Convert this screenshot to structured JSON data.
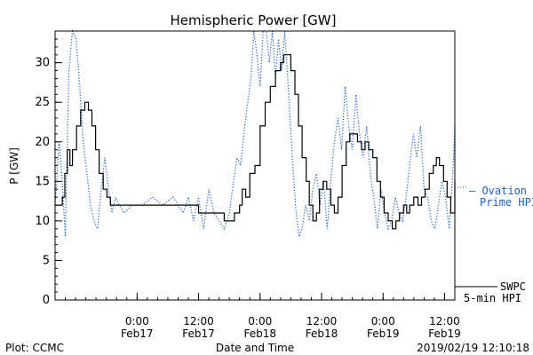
{
  "chart_data": {
    "type": "line",
    "title": "Hemispheric Power [GW]",
    "xlabel": "Date and Time",
    "ylabel": "P [GW]",
    "ylim": [
      0,
      34
    ],
    "xlim": [
      -16,
      62
    ],
    "yticks": [
      0,
      5,
      10,
      15,
      20,
      25,
      30
    ],
    "xticks": [
      {
        "value": 0,
        "time": "0:00",
        "date": "Feb17"
      },
      {
        "value": 12,
        "time": "12:00",
        "date": "Feb17"
      },
      {
        "value": 24,
        "time": "0:00",
        "date": "Feb18"
      },
      {
        "value": 36,
        "time": "12:00",
        "date": "Feb18"
      },
      {
        "value": 48,
        "time": "0:00",
        "date": "Feb19"
      },
      {
        "value": 60,
        "time": "12:00",
        "date": "Feb19"
      }
    ],
    "series": [
      {
        "name": "SWPC 5-min HPI",
        "style": "solid",
        "color": "#000000",
        "points": [
          [
            -16,
            12
          ],
          [
            -15.3,
            12
          ],
          [
            -14.6,
            13
          ],
          [
            -14.1,
            16
          ],
          [
            -13.6,
            19
          ],
          [
            -13.1,
            17
          ],
          [
            -12.6,
            19
          ],
          [
            -11.8,
            22
          ],
          [
            -11,
            24
          ],
          [
            -10.2,
            25
          ],
          [
            -9.5,
            24
          ],
          [
            -8.8,
            22
          ],
          [
            -8.1,
            19
          ],
          [
            -7.4,
            16
          ],
          [
            -6.6,
            14
          ],
          [
            -5.9,
            13
          ],
          [
            -5.2,
            12
          ],
          [
            -3,
            12
          ],
          [
            0,
            12
          ],
          [
            4,
            12
          ],
          [
            8,
            12
          ],
          [
            11,
            12
          ],
          [
            12,
            11
          ],
          [
            14,
            11
          ],
          [
            16,
            11
          ],
          [
            17,
            10
          ],
          [
            18,
            10
          ],
          [
            19,
            11
          ],
          [
            20,
            12
          ],
          [
            20.5,
            14
          ],
          [
            21.2,
            13
          ],
          [
            22,
            16
          ],
          [
            23,
            17
          ],
          [
            24,
            22
          ],
          [
            25,
            25
          ],
          [
            26,
            27
          ],
          [
            27,
            29
          ],
          [
            28,
            30
          ],
          [
            28.6,
            31
          ],
          [
            29.3,
            31
          ],
          [
            30,
            29
          ],
          [
            30.8,
            26
          ],
          [
            31.5,
            22
          ],
          [
            32.2,
            18
          ],
          [
            33,
            15
          ],
          [
            33.6,
            12
          ],
          [
            34.3,
            10
          ],
          [
            35,
            11
          ],
          [
            35.6,
            14
          ],
          [
            36.3,
            15
          ],
          [
            37,
            14
          ],
          [
            37.8,
            12
          ],
          [
            38.5,
            11
          ],
          [
            39.2,
            13
          ],
          [
            40,
            17
          ],
          [
            40.8,
            20
          ],
          [
            41.5,
            21
          ],
          [
            42.2,
            21
          ],
          [
            43,
            20
          ],
          [
            43.8,
            19
          ],
          [
            44.5,
            20
          ],
          [
            45.2,
            19
          ],
          [
            46,
            18
          ],
          [
            46.8,
            15
          ],
          [
            47.5,
            13
          ],
          [
            48.2,
            11
          ],
          [
            49,
            10
          ],
          [
            49.8,
            9
          ],
          [
            50.5,
            10
          ],
          [
            51.2,
            11
          ],
          [
            52,
            12
          ],
          [
            52.6,
            11
          ],
          [
            53.2,
            12
          ],
          [
            54,
            13
          ],
          [
            54.8,
            12
          ],
          [
            55.5,
            13
          ],
          [
            56.2,
            14
          ],
          [
            57,
            16
          ],
          [
            57.8,
            17
          ],
          [
            58.4,
            18
          ],
          [
            59,
            17
          ],
          [
            59.8,
            15
          ],
          [
            60.5,
            13
          ],
          [
            61.2,
            11
          ],
          [
            62,
            11
          ],
          [
            62.6,
            12
          ],
          [
            63.2,
            14
          ],
          [
            63.8,
            15
          ]
        ]
      },
      {
        "name": "Ovation Prime HPI",
        "style": "dotted",
        "color": "#1f5fbf",
        "points": [
          [
            -16,
            12
          ],
          [
            -15.2,
            20
          ],
          [
            -14.6,
            15
          ],
          [
            -14,
            8
          ],
          [
            -13.3,
            29
          ],
          [
            -12.6,
            35
          ],
          [
            -11.9,
            33
          ],
          [
            -11.2,
            27
          ],
          [
            -10.5,
            20
          ],
          [
            -9.8,
            16
          ],
          [
            -9.1,
            12
          ],
          [
            -8.4,
            10
          ],
          [
            -7.7,
            9
          ],
          [
            -7,
            14
          ],
          [
            -6.3,
            18
          ],
          [
            -5.6,
            14
          ],
          [
            -4.9,
            11
          ],
          [
            -4.2,
            13
          ],
          [
            -3.5,
            12
          ],
          [
            -2.5,
            11
          ],
          [
            -1,
            12
          ],
          [
            1,
            12
          ],
          [
            3,
            13
          ],
          [
            5,
            12
          ],
          [
            7,
            13
          ],
          [
            9,
            11
          ],
          [
            10,
            13
          ],
          [
            11,
            10
          ],
          [
            12,
            13
          ],
          [
            13,
            9
          ],
          [
            14,
            14
          ],
          [
            15,
            11
          ],
          [
            16,
            10
          ],
          [
            17,
            9
          ],
          [
            18,
            11
          ],
          [
            18.8,
            15
          ],
          [
            19.5,
            18
          ],
          [
            20.2,
            17
          ],
          [
            21,
            22
          ],
          [
            21.6,
            25
          ],
          [
            22.2,
            28
          ],
          [
            22.8,
            35
          ],
          [
            23.4,
            31
          ],
          [
            24,
            27
          ],
          [
            24.6,
            35
          ],
          [
            25.2,
            36
          ],
          [
            25.8,
            30
          ],
          [
            26.4,
            35
          ],
          [
            27,
            28
          ],
          [
            27.6,
            33
          ],
          [
            28.2,
            29
          ],
          [
            28.8,
            35
          ],
          [
            29.5,
            27
          ],
          [
            30.2,
            19
          ],
          [
            30.9,
            12
          ],
          [
            31.6,
            8
          ],
          [
            32.2,
            9
          ],
          [
            32.9,
            12
          ],
          [
            33.6,
            10
          ],
          [
            34.3,
            14
          ],
          [
            35,
            16
          ],
          [
            35.7,
            12
          ],
          [
            36.4,
            15
          ],
          [
            37.1,
            9
          ],
          [
            37.8,
            15
          ],
          [
            38.5,
            20
          ],
          [
            39.2,
            23
          ],
          [
            39.9,
            19
          ],
          [
            40.6,
            27
          ],
          [
            41.3,
            22
          ],
          [
            42,
            19
          ],
          [
            42.7,
            26
          ],
          [
            43.4,
            21
          ],
          [
            44.1,
            18
          ],
          [
            44.8,
            22
          ],
          [
            45.5,
            16
          ],
          [
            46.2,
            13
          ],
          [
            46.9,
            9
          ],
          [
            47.6,
            14
          ],
          [
            48.3,
            11
          ],
          [
            49,
            9
          ],
          [
            49.7,
            10
          ],
          [
            50.4,
            13
          ],
          [
            51.1,
            11
          ],
          [
            51.8,
            10
          ],
          [
            52.5,
            13
          ],
          [
            53.2,
            17
          ],
          [
            53.9,
            21
          ],
          [
            54.6,
            18
          ],
          [
            55.3,
            22
          ],
          [
            56,
            14
          ],
          [
            56.7,
            13
          ],
          [
            57.4,
            10
          ],
          [
            58.1,
            9
          ],
          [
            58.8,
            12
          ],
          [
            59.5,
            15
          ],
          [
            60.2,
            13
          ],
          [
            60.9,
            9
          ],
          [
            61.6,
            16
          ],
          [
            62.3,
            22
          ],
          [
            63,
            20
          ],
          [
            63.8,
            17
          ]
        ]
      }
    ]
  },
  "legend": {
    "ovation_line1": "— Ovation",
    "ovation_line2": "Prime HPI",
    "swpc_line1": "SWPC",
    "swpc_line2": "5-min HPI"
  },
  "footer": {
    "plot_credit": "Plot: CCMC",
    "timestamp": "2019/02/19 12:10:18"
  },
  "colors": {
    "swpc": "#000000",
    "ovation": "#1f5fbf"
  }
}
